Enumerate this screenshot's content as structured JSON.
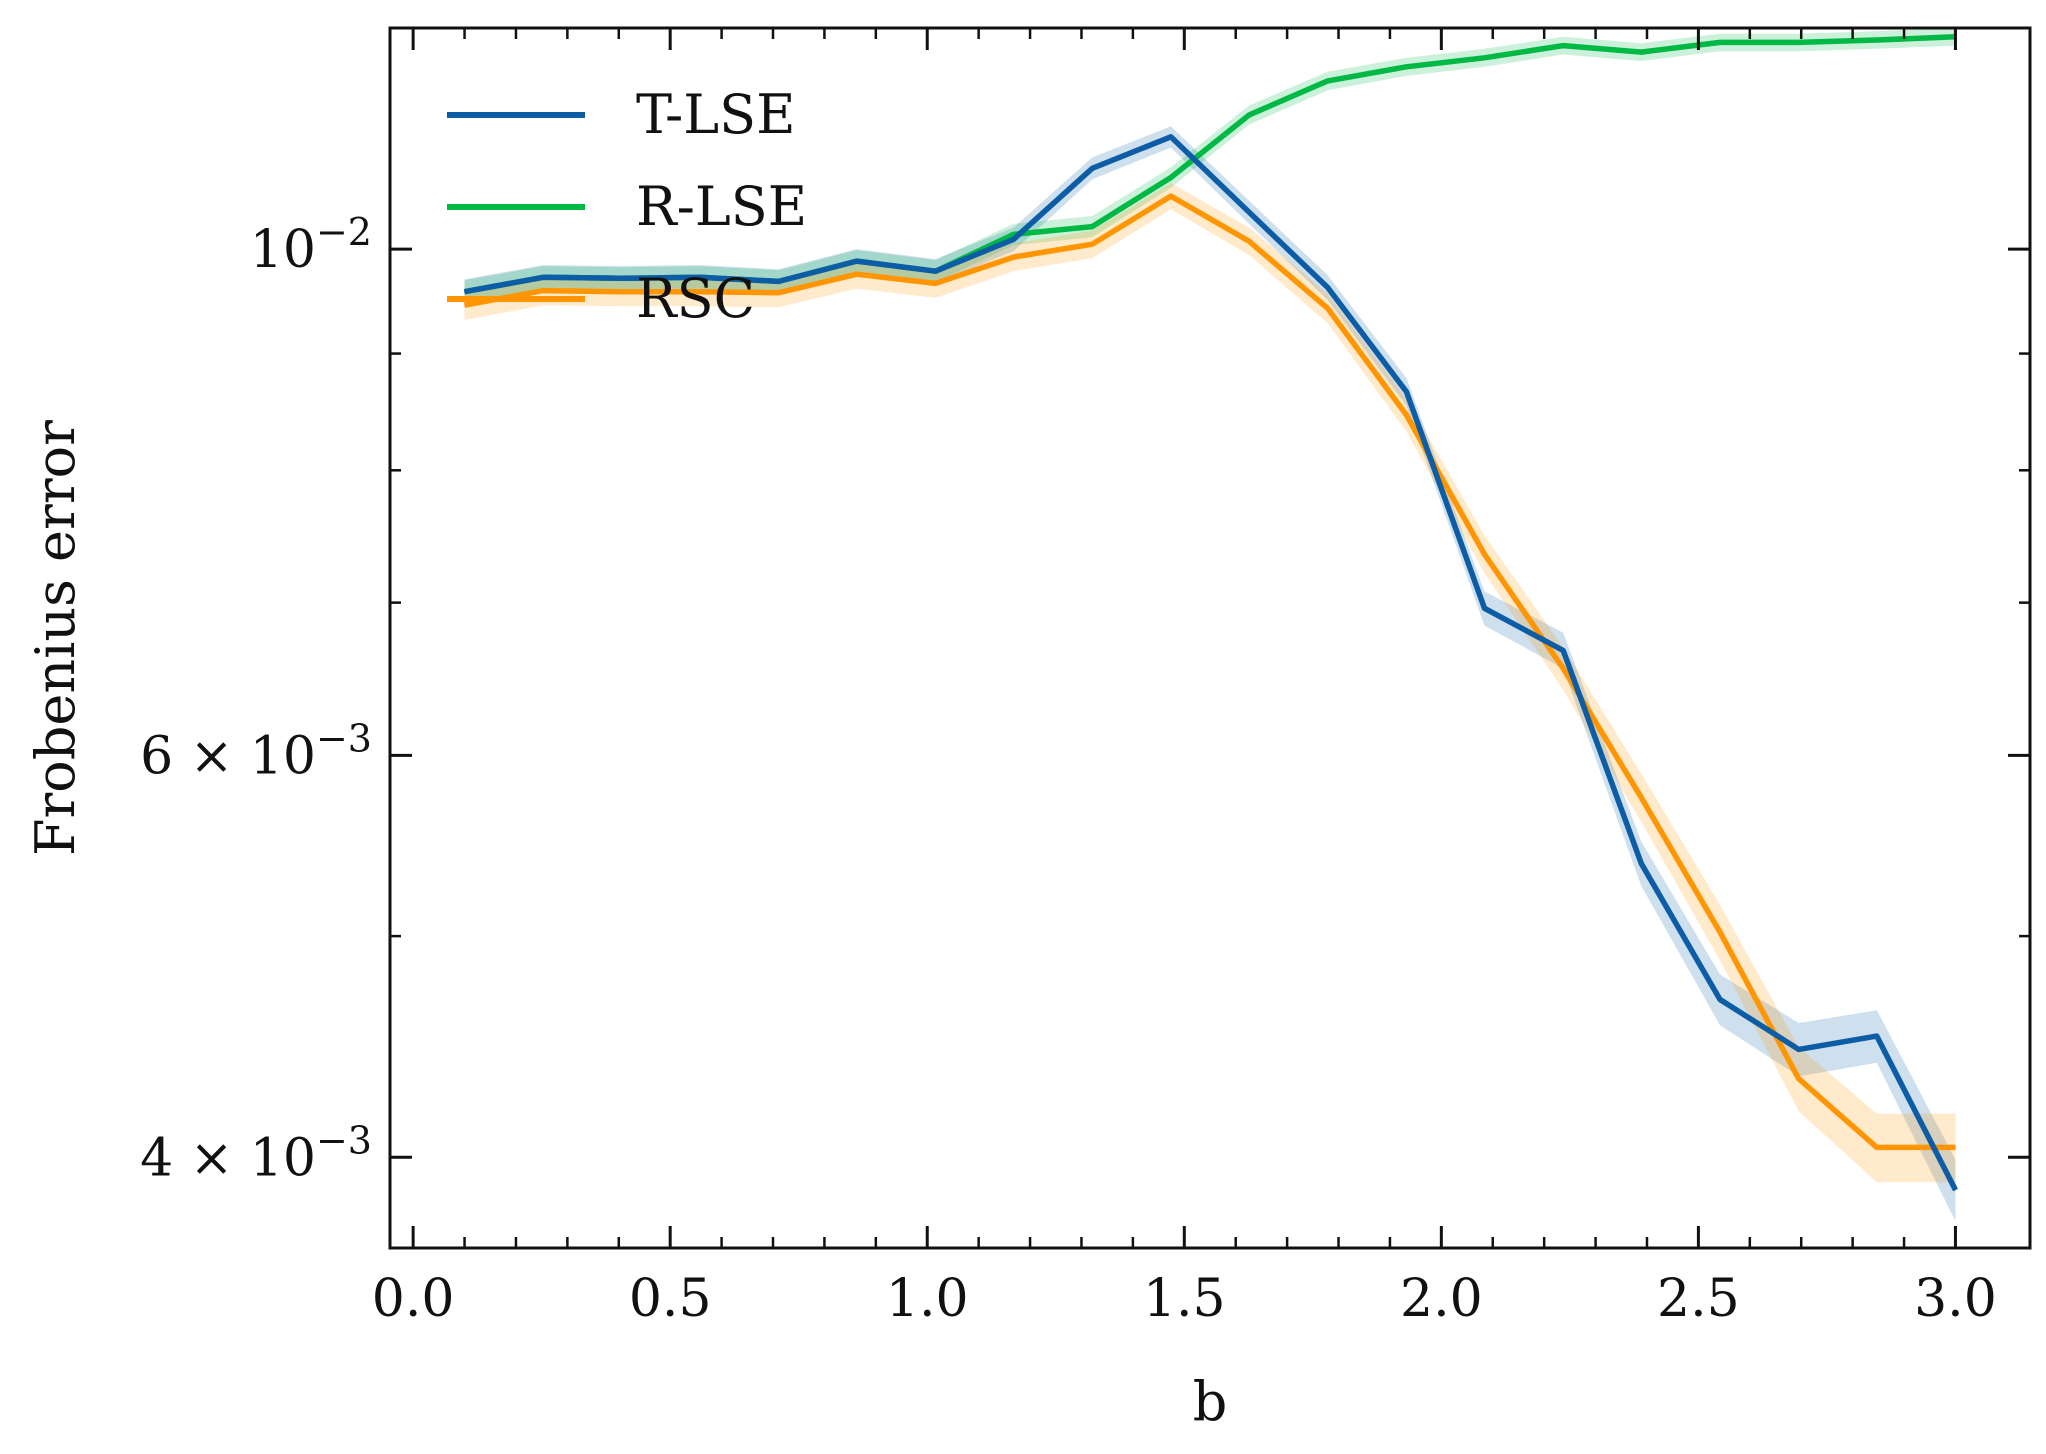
{
  "chart_data": {
    "type": "line",
    "title": "",
    "xlabel": "b",
    "ylabel": "Frobenius error",
    "y_scale": "log",
    "xlim": [
      -0.045,
      3.145
    ],
    "ylim": [
      0.00365,
      0.0125
    ],
    "x_ticks": [
      {
        "value": 0.0,
        "label": "0.0"
      },
      {
        "value": 0.5,
        "label": "0.5"
      },
      {
        "value": 1.0,
        "label": "1.0"
      },
      {
        "value": 1.5,
        "label": "1.5"
      },
      {
        "value": 2.0,
        "label": "2.0"
      },
      {
        "value": 2.5,
        "label": "2.5"
      },
      {
        "value": 3.0,
        "label": "3.0"
      }
    ],
    "y_ticks": [
      {
        "value": 0.01,
        "base": "10",
        "exp": "−2",
        "mult": ""
      },
      {
        "value": 0.006,
        "base": "10",
        "exp": "−3",
        "mult": "6 × "
      },
      {
        "value": 0.004,
        "base": "10",
        "exp": "−3",
        "mult": "4 × "
      }
    ],
    "y_minor_ticks": [
      0.005,
      0.007,
      0.008,
      0.009
    ],
    "legend_position": "top-left",
    "x": [
      0.1,
      0.253,
      0.405,
      0.558,
      0.711,
      0.863,
      1.016,
      1.168,
      1.321,
      1.474,
      1.626,
      1.779,
      1.932,
      2.084,
      2.237,
      2.389,
      2.542,
      2.695,
      2.847,
      3.0
    ],
    "series": [
      {
        "name": "T-LSE",
        "color": "#0C5DA5",
        "values": [
          0.00958,
          0.00972,
          0.00971,
          0.00972,
          0.00968,
          0.00988,
          0.00978,
          0.0101,
          0.01085,
          0.0112,
          0.01038,
          0.00962,
          0.00866,
          0.00696,
          0.00667,
          0.00538,
          0.00469,
          0.00446,
          0.00452,
          0.00387
        ],
        "band": 0.00012
      },
      {
        "name": "R-LSE",
        "color": "#00B945",
        "values": [
          0.00958,
          0.00972,
          0.00971,
          0.00972,
          0.00968,
          0.00988,
          0.00978,
          0.01015,
          0.01023,
          0.01075,
          0.01145,
          0.01185,
          0.01202,
          0.01213,
          0.01228,
          0.0122,
          0.01232,
          0.01232,
          0.01235,
          0.01239
        ],
        "band": 0.00011
      },
      {
        "name": "RSC",
        "color": "#FF9500",
        "values": [
          0.00945,
          0.00959,
          0.00958,
          0.00958,
          0.00957,
          0.00975,
          0.00966,
          0.00992,
          0.01005,
          0.01055,
          0.01008,
          0.00942,
          0.00846,
          0.00735,
          0.00655,
          0.00575,
          0.00502,
          0.00433,
          0.00404,
          0.00404
        ],
        "band": 0.00014
      }
    ]
  }
}
